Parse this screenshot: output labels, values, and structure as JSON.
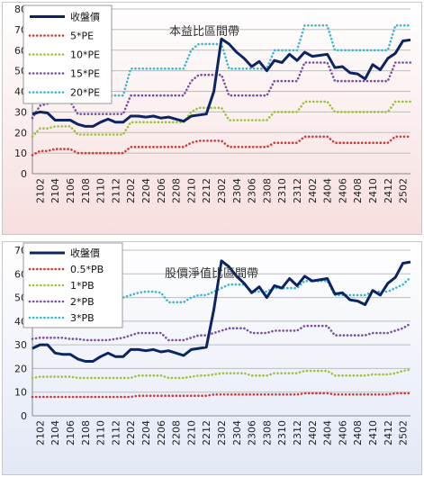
{
  "chart_data": [
    {
      "type": "line",
      "title": "本益比區間帶",
      "ylim": [
        0,
        80
      ],
      "yticks": [
        "0",
        "10",
        "20",
        "30",
        "40",
        "50",
        "60",
        "70",
        "80"
      ],
      "grid": true,
      "legend": "top-left",
      "background": [
        "#ffffff",
        "#f7dede"
      ],
      "x": [
        "2101",
        "2102",
        "2103",
        "2104",
        "2105",
        "2106",
        "2107",
        "2108",
        "2109",
        "2110",
        "2111",
        "2112",
        "2201",
        "2202",
        "2203",
        "2204",
        "2205",
        "2206",
        "2207",
        "2208",
        "2209",
        "2210",
        "2211",
        "2212",
        "2301",
        "2302",
        "2303",
        "2304",
        "2305",
        "2306",
        "2307",
        "2308",
        "2309",
        "2310",
        "2311",
        "2312",
        "2401",
        "2402",
        "2403",
        "2404",
        "2405",
        "2406",
        "2407",
        "2408",
        "2409",
        "2410",
        "2411",
        "2412",
        "2501",
        "2502",
        "2503"
      ],
      "xticks": [
        "2102",
        "2104",
        "2106",
        "2108",
        "2110",
        "2112",
        "2202",
        "2204",
        "2206",
        "2208",
        "2210",
        "2212",
        "2302",
        "2304",
        "2306",
        "2308",
        "2310",
        "2312",
        "2402",
        "2404",
        "2406",
        "2408",
        "2410",
        "2412",
        "2502"
      ],
      "series": [
        {
          "name": "收盤價",
          "style": "solid",
          "color": "#0d2463",
          "values": [
            29,
            30,
            29.5,
            26,
            26,
            26,
            24,
            23,
            23,
            25,
            26.5,
            25,
            25,
            28,
            28,
            27.5,
            28,
            27,
            27.5,
            26.5,
            25.5,
            28,
            28.5,
            29,
            40,
            65.5,
            63,
            59,
            56,
            52,
            54.5,
            50,
            55,
            54,
            58,
            55,
            59,
            57,
            57.5,
            58,
            51.5,
            52,
            49,
            48.5,
            46,
            53,
            50.5,
            56,
            58.5,
            64.5,
            65
          ]
        },
        {
          "name": "5*PE",
          "style": "dotted",
          "color": "#d23a3a",
          "values": [
            9,
            11,
            11,
            12,
            12,
            12,
            10,
            10,
            10,
            10,
            10,
            10,
            10,
            13,
            13,
            13,
            13,
            13,
            13,
            13,
            13,
            15,
            16,
            16,
            16,
            16,
            13,
            13,
            13,
            13,
            13,
            13,
            15,
            15,
            15,
            15,
            18,
            18,
            18,
            18,
            15,
            15,
            15,
            15,
            15,
            15,
            15,
            15,
            18,
            18,
            18
          ]
        },
        {
          "name": "10*PE",
          "style": "dotted",
          "color": "#9cc43a",
          "values": [
            18,
            22,
            22,
            23,
            23,
            23,
            19,
            19,
            19,
            19,
            19,
            19,
            19,
            25,
            25,
            25,
            25,
            25,
            25,
            25,
            25,
            30,
            32,
            32,
            32,
            32,
            26,
            26,
            26,
            26,
            26,
            26,
            30,
            30,
            30,
            30,
            35,
            35,
            35,
            35,
            30,
            30,
            30,
            30,
            30,
            30,
            30,
            30,
            35,
            35,
            35
          ]
        },
        {
          "name": "15*PE",
          "style": "dotted",
          "color": "#7b4fa3",
          "values": [
            27,
            33,
            34,
            35,
            35,
            35,
            29,
            29,
            29,
            29,
            29,
            29,
            29,
            38,
            38,
            38,
            38,
            38,
            38,
            38,
            38,
            45,
            48,
            48,
            48,
            48,
            38,
            38,
            38,
            38,
            38,
            38,
            45,
            45,
            45,
            45,
            54,
            54,
            54,
            54,
            45,
            45,
            45,
            45,
            45,
            45,
            45,
            45,
            54,
            54,
            54
          ]
        },
        {
          "name": "20*PE",
          "style": "dotted",
          "color": "#3cb7cc",
          "values": [
            36,
            43,
            45,
            46,
            46,
            46,
            38,
            38,
            38,
            38,
            38,
            38,
            38,
            51,
            51,
            51,
            51,
            51,
            51,
            51,
            51,
            60,
            63,
            63,
            63,
            63,
            51,
            51,
            51,
            51,
            51,
            51,
            60,
            60,
            60,
            60,
            72,
            72,
            72,
            72,
            60,
            60,
            60,
            60,
            60,
            60,
            60,
            60,
            72,
            72,
            72
          ]
        }
      ]
    },
    {
      "type": "line",
      "title": "股價淨值比區間帶",
      "ylim": [
        0,
        70
      ],
      "yticks": [
        "0",
        "10",
        "20",
        "30",
        "40",
        "50",
        "60",
        "70"
      ],
      "grid": true,
      "legend": "top-left",
      "background": [
        "#ffffff",
        "#e3e8f6"
      ],
      "x": [
        "2101",
        "2102",
        "2103",
        "2104",
        "2105",
        "2106",
        "2107",
        "2108",
        "2109",
        "2110",
        "2111",
        "2112",
        "2201",
        "2202",
        "2203",
        "2204",
        "2205",
        "2206",
        "2207",
        "2208",
        "2209",
        "2210",
        "2211",
        "2212",
        "2301",
        "2302",
        "2303",
        "2304",
        "2305",
        "2306",
        "2307",
        "2308",
        "2309",
        "2310",
        "2311",
        "2312",
        "2401",
        "2402",
        "2403",
        "2404",
        "2405",
        "2406",
        "2407",
        "2408",
        "2409",
        "2410",
        "2411",
        "2412",
        "2501",
        "2502",
        "2503"
      ],
      "xticks": [
        "2102",
        "2104",
        "2106",
        "2108",
        "2110",
        "2112",
        "2202",
        "2204",
        "2206",
        "2208",
        "2210",
        "2212",
        "2302",
        "2304",
        "2306",
        "2308",
        "2310",
        "2312",
        "2402",
        "2404",
        "2406",
        "2408",
        "2410",
        "2412",
        "2502"
      ],
      "series": [
        {
          "name": "收盤價",
          "style": "solid",
          "color": "#0d2463",
          "values": [
            28.5,
            30,
            30,
            26.5,
            26,
            26,
            24,
            23,
            23,
            25,
            26.5,
            25,
            25,
            28,
            28,
            27.5,
            28,
            27,
            27.5,
            26.5,
            25.5,
            28,
            28.5,
            29,
            45,
            65.5,
            63,
            59,
            56,
            52,
            54.5,
            50,
            55,
            54,
            58,
            55,
            59,
            57,
            57.5,
            58,
            51.5,
            52,
            49,
            48.5,
            47,
            53,
            51,
            56,
            58.5,
            64.5,
            65
          ]
        },
        {
          "name": "0.5*PB",
          "style": "dotted",
          "color": "#d23a3a",
          "values": [
            8,
            8,
            8,
            8,
            8,
            8,
            8,
            8,
            8,
            8,
            8,
            8,
            8,
            8,
            8.5,
            8.5,
            8.5,
            8.5,
            8.5,
            8.5,
            8.5,
            8.5,
            8.5,
            8.5,
            9,
            9,
            9,
            9,
            9,
            9,
            9,
            9,
            9,
            9,
            9,
            9,
            9.5,
            9.5,
            9.5,
            9.5,
            9,
            9,
            9,
            9,
            9,
            9,
            9,
            9,
            9.5,
            9.5,
            9.5
          ]
        },
        {
          "name": "1*PB",
          "style": "dotted",
          "color": "#9cc43a",
          "values": [
            16,
            16.5,
            16.5,
            16.5,
            16.5,
            16.5,
            16,
            16,
            16,
            16,
            16,
            16,
            16,
            16,
            17,
            17,
            17,
            17,
            16,
            16,
            16,
            16.5,
            17,
            17,
            17.5,
            18,
            18,
            18,
            18,
            17,
            17,
            17,
            18,
            18,
            18,
            18,
            19,
            19,
            19,
            19,
            17,
            17,
            17,
            17,
            17,
            17.5,
            17.5,
            17.5,
            18,
            19,
            19.5
          ]
        },
        {
          "name": "2*PB",
          "style": "dotted",
          "color": "#7b4fa3",
          "values": [
            32.5,
            33,
            33,
            33,
            33,
            32.5,
            32.5,
            32,
            32,
            32,
            32,
            32.5,
            33,
            34,
            35,
            35,
            35,
            35,
            32,
            32,
            32,
            33,
            34,
            34,
            35,
            36,
            37,
            37,
            37,
            35,
            35,
            35,
            36,
            36,
            36,
            36,
            38,
            38,
            38,
            38,
            34,
            34,
            34,
            34,
            34,
            35,
            35,
            35,
            36,
            37,
            39
          ]
        },
        {
          "name": "3*PB",
          "style": "dotted",
          "color": "#3cb7cc",
          "values": [
            49,
            49.5,
            49.5,
            49.5,
            49.5,
            49,
            49,
            48,
            48,
            48,
            48,
            49,
            50,
            51,
            52,
            52.5,
            52.5,
            52,
            48,
            48,
            48,
            50,
            51,
            51,
            52.5,
            54,
            55.5,
            55.5,
            55.5,
            52.5,
            52.5,
            52.5,
            54,
            54,
            54,
            54,
            57,
            57,
            57,
            57,
            51,
            51,
            51,
            51,
            51,
            52.5,
            52.5,
            52.5,
            54,
            55.5,
            58.5
          ]
        }
      ]
    }
  ]
}
